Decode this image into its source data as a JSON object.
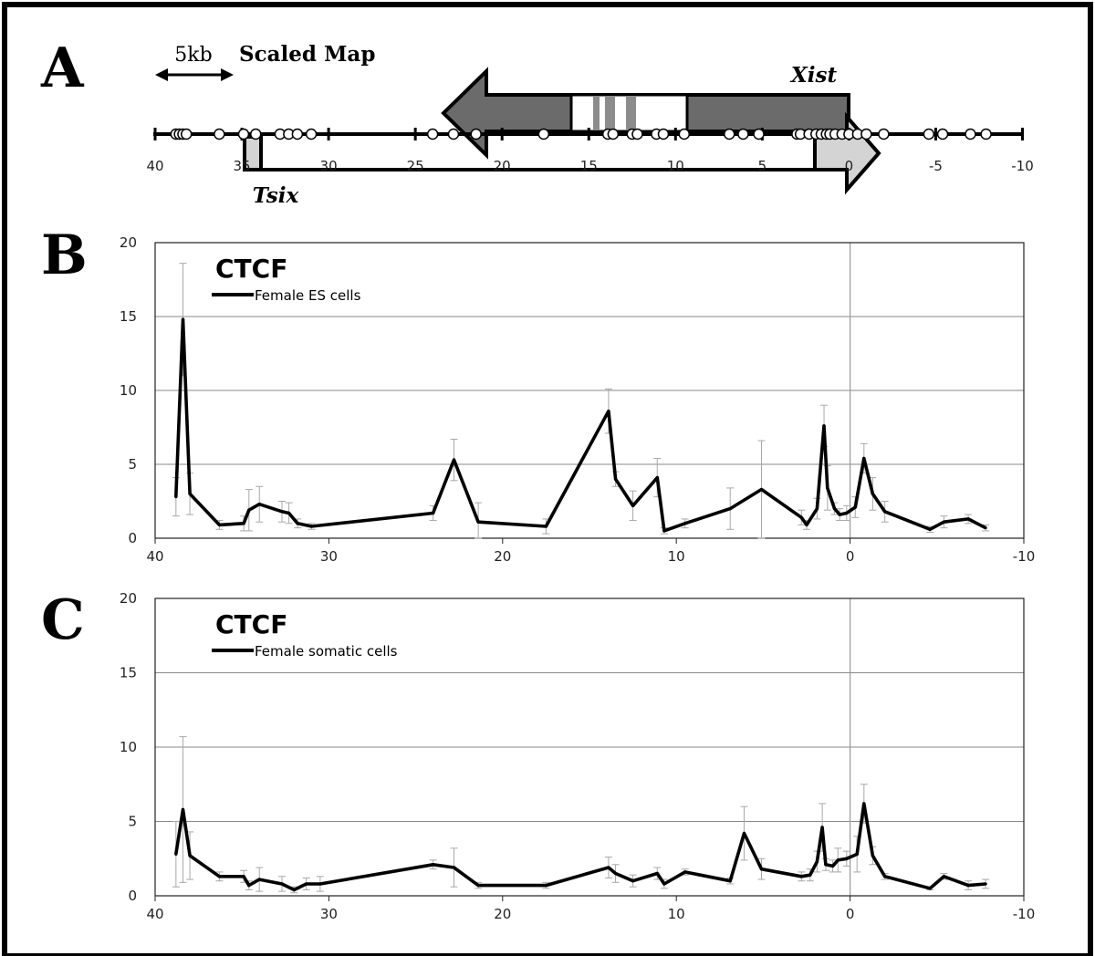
{
  "panel_a": {
    "letter": "A",
    "scale_label": "5kb",
    "map_title": "Scaled Map",
    "xist_label": "Xist",
    "tsix_label": "Tsix",
    "ticks": [
      "40",
      "35",
      "30",
      "25",
      "20",
      "15",
      "10",
      "5",
      "0",
      "-5",
      "-10"
    ],
    "sites_kb": [
      38.8,
      38.6,
      38.4,
      38.2,
      36.3,
      34.9,
      34.2,
      32.8,
      32.3,
      31.8,
      31.0,
      24.0,
      22.8,
      21.5,
      17.6,
      13.9,
      13.6,
      12.5,
      12.2,
      11.1,
      10.7,
      9.5,
      6.9,
      6.1,
      5.2,
      3.0,
      2.8,
      2.3,
      1.9,
      1.6,
      1.3,
      1.1,
      0.8,
      0.4,
      0.0,
      -0.5,
      -1.0,
      -2.0,
      -4.6,
      -5.4,
      -7.0,
      -7.9
    ],
    "colors": {
      "xist_fill": "#6b6b6b",
      "tsix_fill": "#d4d4d4",
      "exon_bar": "#8c8c8c"
    }
  },
  "chart_data": [
    {
      "panel": "B",
      "type": "line",
      "title": "CTCF",
      "legend": "Female ES cells",
      "legend_position": "top-left",
      "xlim": [
        40,
        -10
      ],
      "ylim": [
        0,
        20
      ],
      "xticks": [
        40,
        30,
        20,
        10,
        0,
        -10
      ],
      "yticks": [
        0,
        5,
        10,
        15,
        20
      ],
      "grid": true,
      "series": [
        {
          "name": "Female ES cells",
          "x": [
            38.8,
            38.4,
            38.0,
            36.3,
            34.9,
            34.6,
            34.0,
            32.7,
            32.3,
            31.8,
            31.0,
            24.0,
            22.8,
            21.4,
            17.5,
            13.9,
            13.5,
            12.5,
            11.1,
            10.7,
            9.5,
            6.9,
            5.1,
            2.8,
            2.5,
            1.9,
            1.5,
            1.3,
            0.9,
            0.6,
            0.2,
            -0.3,
            -0.8,
            -1.3,
            -2.0,
            -4.6,
            -5.4,
            -6.8,
            -7.8
          ],
          "y": [
            2.8,
            14.8,
            3.0,
            0.9,
            1.0,
            1.9,
            2.3,
            1.8,
            1.7,
            1.0,
            0.8,
            1.7,
            5.3,
            1.1,
            0.8,
            8.6,
            4.0,
            2.2,
            4.1,
            0.5,
            1.0,
            2.0,
            3.3,
            1.4,
            0.9,
            2.0,
            7.6,
            3.4,
            2.0,
            1.6,
            1.7,
            2.1,
            5.4,
            3.0,
            1.8,
            0.6,
            1.1,
            1.3,
            0.7
          ],
          "err": [
            1.3,
            3.8,
            1.4,
            0.3,
            0.5,
            1.4,
            1.2,
            0.7,
            0.7,
            0.3,
            0.2,
            0.5,
            1.4,
            1.3,
            0.5,
            1.5,
            0.5,
            1.0,
            1.3,
            0.2,
            0.3,
            1.4,
            3.3,
            0.5,
            0.3,
            0.7,
            1.4,
            1.5,
            0.4,
            0.4,
            0.5,
            0.7,
            1.0,
            1.1,
            0.7,
            0.2,
            0.4,
            0.3,
            0.2
          ]
        }
      ]
    },
    {
      "panel": "C",
      "type": "line",
      "title": "CTCF",
      "legend": "Female somatic cells",
      "legend_position": "top-left",
      "xlim": [
        40,
        -10
      ],
      "ylim": [
        0,
        20
      ],
      "xticks": [
        40,
        30,
        20,
        10,
        0,
        -10
      ],
      "yticks": [
        0,
        5,
        10,
        15,
        20
      ],
      "grid": true,
      "series": [
        {
          "name": "Female somatic cells",
          "x": [
            38.8,
            38.4,
            38.0,
            36.3,
            34.9,
            34.6,
            34.0,
            32.7,
            32.0,
            31.3,
            30.5,
            24.0,
            22.8,
            21.4,
            17.5,
            13.9,
            13.5,
            12.5,
            11.1,
            10.7,
            9.5,
            6.9,
            6.1,
            5.1,
            2.8,
            2.3,
            1.9,
            1.6,
            1.4,
            1.0,
            0.7,
            0.2,
            -0.4,
            -0.8,
            -1.3,
            -2.0,
            -4.6,
            -5.4,
            -6.8,
            -7.8
          ],
          "y": [
            2.8,
            5.8,
            2.7,
            1.3,
            1.3,
            0.7,
            1.1,
            0.8,
            0.4,
            0.8,
            0.8,
            2.1,
            1.9,
            0.7,
            0.7,
            1.9,
            1.5,
            1.0,
            1.5,
            0.8,
            1.6,
            1.0,
            4.2,
            1.8,
            1.3,
            1.4,
            2.3,
            4.6,
            2.1,
            2.0,
            2.4,
            2.5,
            2.8,
            6.2,
            2.7,
            1.3,
            0.5,
            1.3,
            0.7,
            0.8
          ]
        }
      ],
      "err": [
        2.2,
        4.9,
        1.6,
        0.3,
        0.4,
        0.3,
        0.8,
        0.5,
        0.2,
        0.4,
        0.5,
        0.3,
        1.3,
        0.2,
        0.2,
        0.7,
        0.6,
        0.4,
        0.4,
        0.3,
        0.2,
        0.2,
        1.8,
        0.7,
        0.3,
        0.4,
        0.7,
        1.6,
        0.4,
        0.4,
        0.8,
        0.5,
        1.2,
        1.3,
        0.6,
        0.2,
        0.1,
        0.2,
        0.3,
        0.3
      ]
    }
  ],
  "labels": {
    "panel_b": "B",
    "panel_c": "C"
  }
}
